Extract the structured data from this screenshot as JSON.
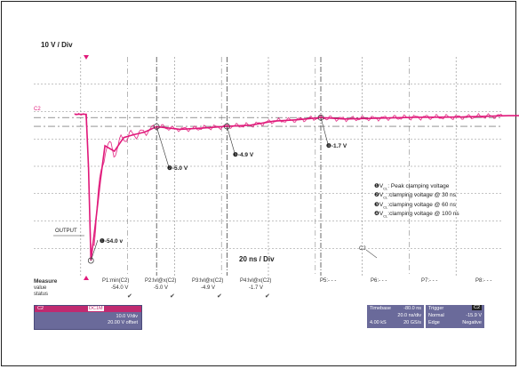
{
  "chart_data": {
    "type": "line",
    "title": "",
    "y_scale_label": "10 V / Div",
    "x_scale_label": "20 ns / Div",
    "trace_label": "OUTPUT",
    "colors": {
      "trace": "#e0197a",
      "grid": "#888888",
      "panel": "#6a6a9a"
    },
    "series": [
      {
        "name": "OUTPUT",
        "x": [
          -5,
          0,
          1,
          2,
          4,
          6,
          8,
          12,
          16,
          20,
          25,
          30,
          40,
          50,
          60,
          70,
          80,
          90,
          100,
          110,
          120,
          140,
          160,
          180,
          200,
          220,
          240,
          260,
          280,
          300,
          340
        ],
        "y": [
          -0.5,
          -0.5,
          -20,
          -54.0,
          -40,
          -25,
          -12,
          -14,
          -9,
          -8,
          -7,
          -5.0,
          -6,
          -5.5,
          -4.9,
          -4.5,
          -3,
          -2.5,
          -1.7,
          -2.2,
          -2.0,
          -1.6,
          -1.5,
          -1.0,
          -0.9,
          -0.7,
          -0.6,
          -0.5,
          -0.4,
          -0.4,
          -0.3
        ]
      }
    ],
    "annotations": [
      {
        "n": "1",
        "x": 2,
        "y": -54.0,
        "text": "-54.0 v"
      },
      {
        "n": "2",
        "x": 30,
        "y": -5.0,
        "text": "-5.0 V"
      },
      {
        "n": "3",
        "x": 60,
        "y": -4.9,
        "text": "-4.9 V"
      },
      {
        "n": "4",
        "x": 100,
        "y": -1.7,
        "text": "-1.7 V"
      }
    ],
    "legend": [
      {
        "n": "1",
        "text": "V  : Peak clamping voltage",
        "sub": "CL"
      },
      {
        "n": "2",
        "text": "V  :clamping voltage @ 30 ns",
        "sub": "CL"
      },
      {
        "n": "3",
        "text": "V  :clamping voltage @ 60 ns",
        "sub": "CL"
      },
      {
        "n": "4",
        "text": "V  :clamping voltage @ 100 ns",
        "sub": "CL"
      }
    ],
    "legend_position": "right",
    "grid": true
  },
  "measure": {
    "header": "Measure",
    "row_labels": [
      "value",
      "status"
    ],
    "params": [
      {
        "name": "P1:min(C2)",
        "value": "-54.0 V"
      },
      {
        "name": "P2:lvl@x(C2)",
        "value": "-5.0 V"
      },
      {
        "name": "P3:lvl@x(C2)",
        "value": "-4.9 V"
      },
      {
        "name": "P4:lvl@x(C2)",
        "value": "-1.7 V"
      },
      {
        "name": "P5:- - -",
        "value": ""
      },
      {
        "name": "P6:- - -",
        "value": ""
      },
      {
        "name": "P7:- - -",
        "value": ""
      },
      {
        "name": "P8:- - -",
        "value": ""
      }
    ],
    "check": "✔"
  },
  "channel_panel": {
    "name": "C2",
    "tag": "DC1M",
    "vdiv": "10.0 V/div",
    "offset": "20.00 V offset"
  },
  "timebase_panel": {
    "label": "Timebase",
    "delay": "-80.0 ns",
    "tdiv": "20.0 ns/div",
    "samples": "4.00 kS",
    "rate": "20 GS/s"
  },
  "trigger_panel": {
    "label": "Trigger",
    "tag": "C2",
    "mode": "Normal",
    "level": "-15.9 V",
    "type": "Edge",
    "slope": "Negative"
  },
  "ref_markers": {
    "c2_left": "C2",
    "c2_right": "C2"
  }
}
